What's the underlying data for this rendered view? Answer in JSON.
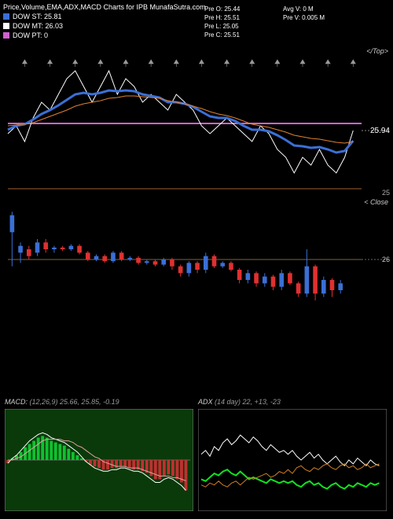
{
  "title": "Price,Volume,EMA,ADX,MACD Charts for IPB MunafaSutra.com",
  "legend": [
    {
      "label": "DOW ST: 25.81",
      "color": "#3b6fd6"
    },
    {
      "label": "DOW MT: 26.03",
      "color": "#ffffff"
    },
    {
      "label": "DOW PT: 0",
      "color": "#d060d0"
    }
  ],
  "stats_left": [
    "Pre   O: 25.44",
    "Pre   H: 25.51",
    "Pre   L: 25.05",
    "Pre   C: 25.51"
  ],
  "stats_right": [
    "Avg V: 0  M",
    "Pre   V: 0.005 M"
  ],
  "price_panel": {
    "bg": "#000000",
    "xlim": [
      0,
      42
    ],
    "ylim": [
      25.2,
      26.8
    ],
    "lines": [
      {
        "color": "#ffffff",
        "width": 1,
        "y": [
          25.9,
          26.0,
          25.8,
          26.1,
          26.3,
          26.2,
          26.4,
          26.6,
          26.7,
          26.5,
          26.3,
          26.5,
          26.7,
          26.4,
          26.6,
          26.5,
          26.3,
          26.4,
          26.3,
          26.2,
          26.4,
          26.3,
          26.2,
          26.0,
          25.9,
          26.0,
          26.1,
          26.0,
          25.9,
          25.8,
          26.0,
          25.9,
          25.7,
          25.6,
          25.4,
          25.6,
          25.5,
          25.7,
          25.5,
          25.4,
          25.6,
          25.94
        ]
      },
      {
        "color": "#3b6fd6",
        "width": 3,
        "y": [
          25.95,
          26.0,
          26.02,
          26.08,
          26.15,
          26.2,
          26.26,
          26.33,
          26.4,
          26.42,
          26.4,
          26.42,
          26.45,
          26.44,
          26.45,
          26.44,
          26.4,
          26.38,
          26.36,
          26.3,
          26.3,
          26.28,
          26.24,
          26.18,
          26.12,
          26.1,
          26.1,
          26.06,
          26.0,
          25.95,
          25.95,
          25.93,
          25.88,
          25.82,
          25.75,
          25.74,
          25.72,
          25.73,
          25.7,
          25.66,
          25.68,
          25.81
        ]
      },
      {
        "color": "#e08030",
        "width": 1,
        "y": [
          26.0,
          26.01,
          26.02,
          26.04,
          26.08,
          26.12,
          26.16,
          26.2,
          26.25,
          26.28,
          26.3,
          26.32,
          26.35,
          26.36,
          26.38,
          26.38,
          26.37,
          26.36,
          26.35,
          26.32,
          26.3,
          26.28,
          26.25,
          26.22,
          26.18,
          26.15,
          26.13,
          26.1,
          26.06,
          26.02,
          26.0,
          25.98,
          25.95,
          25.92,
          25.88,
          25.86,
          25.84,
          25.83,
          25.81,
          25.79,
          25.78,
          25.8
        ]
      }
    ],
    "hline": {
      "y": 26.03,
      "color": "#d060d0",
      "width": 2
    },
    "baseline": {
      "y": 25.2,
      "color": "#a06030"
    },
    "end_label": "25.94",
    "axis_label_right": "25",
    "corner_label": "</Top>",
    "bottom_right": "< Close"
  },
  "candle_panel": {
    "bg": "#000000",
    "xlim": [
      0,
      42
    ],
    "ylim": [
      24.5,
      27.5
    ],
    "yref": 26,
    "yref_color": "#806040",
    "yref_label": "26",
    "up_color": "#3b6fd6",
    "down_color": "#e03030",
    "candles": [
      {
        "o": 26.8,
        "c": 27.3,
        "h": 27.4,
        "l": 25.8
      },
      {
        "o": 26.2,
        "c": 26.4,
        "h": 26.5,
        "l": 25.9
      },
      {
        "o": 26.3,
        "c": 26.1,
        "h": 26.4,
        "l": 26.0
      },
      {
        "o": 26.2,
        "c": 26.5,
        "h": 26.6,
        "l": 26.1
      },
      {
        "o": 26.5,
        "c": 26.3,
        "h": 26.6,
        "l": 26.2
      },
      {
        "o": 26.3,
        "c": 26.35,
        "h": 26.4,
        "l": 26.2
      },
      {
        "o": 26.35,
        "c": 26.3,
        "h": 26.4,
        "l": 26.25
      },
      {
        "o": 26.3,
        "c": 26.4,
        "h": 26.45,
        "l": 26.25
      },
      {
        "o": 26.4,
        "c": 26.2,
        "h": 26.45,
        "l": 26.15
      },
      {
        "o": 26.2,
        "c": 26.0,
        "h": 26.25,
        "l": 25.95
      },
      {
        "o": 26.0,
        "c": 26.1,
        "h": 26.15,
        "l": 25.95
      },
      {
        "o": 26.1,
        "c": 25.95,
        "h": 26.15,
        "l": 25.9
      },
      {
        "o": 25.95,
        "c": 26.2,
        "h": 26.25,
        "l": 25.9
      },
      {
        "o": 26.2,
        "c": 26.0,
        "h": 26.25,
        "l": 25.95
      },
      {
        "o": 26.0,
        "c": 26.05,
        "h": 26.1,
        "l": 25.95
      },
      {
        "o": 26.05,
        "c": 25.9,
        "h": 26.1,
        "l": 25.85
      },
      {
        "o": 25.9,
        "c": 25.95,
        "h": 26.0,
        "l": 25.85
      },
      {
        "o": 25.95,
        "c": 25.85,
        "h": 26.0,
        "l": 25.8
      },
      {
        "o": 25.85,
        "c": 26.0,
        "h": 26.05,
        "l": 25.8
      },
      {
        "o": 26.0,
        "c": 25.8,
        "h": 26.05,
        "l": 25.7
      },
      {
        "o": 25.8,
        "c": 25.6,
        "h": 25.85,
        "l": 25.5
      },
      {
        "o": 25.6,
        "c": 25.9,
        "h": 25.95,
        "l": 25.5
      },
      {
        "o": 25.9,
        "c": 25.7,
        "h": 25.95,
        "l": 25.6
      },
      {
        "o": 25.7,
        "c": 26.1,
        "h": 26.2,
        "l": 25.6
      },
      {
        "o": 26.1,
        "c": 25.8,
        "h": 26.15,
        "l": 25.75
      },
      {
        "o": 25.8,
        "c": 25.9,
        "h": 25.95,
        "l": 25.75
      },
      {
        "o": 25.9,
        "c": 25.7,
        "h": 25.95,
        "l": 25.65
      },
      {
        "o": 25.7,
        "c": 25.4,
        "h": 25.75,
        "l": 25.3
      },
      {
        "o": 25.4,
        "c": 25.6,
        "h": 25.7,
        "l": 25.3
      },
      {
        "o": 25.6,
        "c": 25.3,
        "h": 25.65,
        "l": 25.2
      },
      {
        "o": 25.3,
        "c": 25.5,
        "h": 25.6,
        "l": 25.2
      },
      {
        "o": 25.5,
        "c": 25.2,
        "h": 25.55,
        "l": 25.1
      },
      {
        "o": 25.2,
        "c": 25.6,
        "h": 25.7,
        "l": 25.1
      },
      {
        "o": 25.6,
        "c": 25.3,
        "h": 25.65,
        "l": 25.25
      },
      {
        "o": 25.3,
        "c": 25.0,
        "h": 25.35,
        "l": 24.9
      },
      {
        "o": 25.0,
        "c": 25.8,
        "h": 26.3,
        "l": 24.9
      },
      {
        "o": 25.8,
        "c": 25.0,
        "h": 25.85,
        "l": 24.8
      },
      {
        "o": 25.0,
        "c": 25.4,
        "h": 25.5,
        "l": 24.9
      },
      {
        "o": 25.4,
        "c": 25.1,
        "h": 25.45,
        "l": 24.9
      },
      {
        "o": 25.1,
        "c": 25.3,
        "h": 25.4,
        "l": 25.0
      }
    ]
  },
  "macd": {
    "label": "MACD:",
    "params": "(12,26,9) 25.66,  25.85,  -0.19",
    "bg": "#0a3a0a",
    "border": "#808080",
    "xlim": [
      0,
      42
    ],
    "ylim": [
      -0.3,
      0.3
    ],
    "hist": [
      -0.02,
      0.01,
      0.03,
      0.05,
      0.08,
      0.1,
      0.12,
      0.14,
      0.15,
      0.14,
      0.12,
      0.11,
      0.1,
      0.09,
      0.07,
      0.05,
      0.03,
      0.01,
      -0.01,
      -0.03,
      -0.04,
      -0.05,
      -0.06,
      -0.06,
      -0.05,
      -0.05,
      -0.04,
      -0.04,
      -0.05,
      -0.06,
      -0.06,
      -0.07,
      -0.08,
      -0.1,
      -0.12,
      -0.12,
      -0.1,
      -0.09,
      -0.1,
      -0.12,
      -0.14,
      -0.19
    ],
    "hist_pos": "#10c030",
    "hist_neg": "#c03030",
    "macd_line": {
      "color": "#ffffff",
      "y": [
        -0.02,
        0.01,
        0.03,
        0.06,
        0.09,
        0.12,
        0.14,
        0.16,
        0.17,
        0.16,
        0.14,
        0.13,
        0.12,
        0.11,
        0.09,
        0.07,
        0.05,
        0.02,
        -0.01,
        -0.03,
        -0.05,
        -0.06,
        -0.07,
        -0.07,
        -0.06,
        -0.06,
        -0.05,
        -0.05,
        -0.06,
        -0.07,
        -0.07,
        -0.08,
        -0.1,
        -0.12,
        -0.14,
        -0.14,
        -0.12,
        -0.11,
        -0.12,
        -0.14,
        -0.16,
        -0.19
      ]
    },
    "sig_line": {
      "color": "#e0a0a0",
      "y": [
        0.0,
        0.0,
        0.01,
        0.02,
        0.04,
        0.06,
        0.08,
        0.1,
        0.12,
        0.13,
        0.13,
        0.13,
        0.13,
        0.12,
        0.12,
        0.11,
        0.09,
        0.08,
        0.06,
        0.04,
        0.02,
        0.01,
        -0.01,
        -0.02,
        -0.03,
        -0.04,
        -0.04,
        -0.04,
        -0.05,
        -0.05,
        -0.05,
        -0.06,
        -0.07,
        -0.08,
        -0.09,
        -0.1,
        -0.1,
        -0.1,
        -0.11,
        -0.11,
        -0.12,
        -0.13
      ]
    }
  },
  "adx": {
    "label": "ADX",
    "params": "(14  day) 22,  +13,  -23",
    "bg": "#000000",
    "border": "#808080",
    "xlim": [
      0,
      42
    ],
    "ylim": [
      0,
      50
    ],
    "adx_line": {
      "color": "#ffffff",
      "y": [
        28,
        30,
        27,
        32,
        30,
        34,
        36,
        33,
        35,
        38,
        36,
        34,
        37,
        35,
        32,
        30,
        33,
        31,
        29,
        30,
        28,
        30,
        27,
        25,
        27,
        29,
        26,
        28,
        25,
        23,
        25,
        27,
        24,
        22,
        25,
        23,
        26,
        24,
        22,
        25,
        23,
        22
      ]
    },
    "plus_di": {
      "color": "#10e020",
      "y": [
        15,
        14,
        16,
        18,
        17,
        19,
        20,
        18,
        17,
        19,
        17,
        15,
        16,
        15,
        14,
        13,
        15,
        14,
        13,
        14,
        13,
        14,
        12,
        11,
        13,
        14,
        12,
        13,
        11,
        10,
        12,
        13,
        11,
        10,
        12,
        11,
        13,
        12,
        11,
        13,
        12,
        13
      ]
    },
    "minus_di": {
      "color": "#d08020",
      "y": [
        12,
        11,
        13,
        12,
        14,
        12,
        11,
        13,
        14,
        12,
        14,
        16,
        15,
        16,
        17,
        18,
        16,
        17,
        19,
        18,
        20,
        18,
        21,
        22,
        20,
        19,
        21,
        20,
        22,
        23,
        21,
        20,
        22,
        23,
        21,
        22,
        20,
        21,
        23,
        21,
        22,
        23
      ]
    }
  }
}
